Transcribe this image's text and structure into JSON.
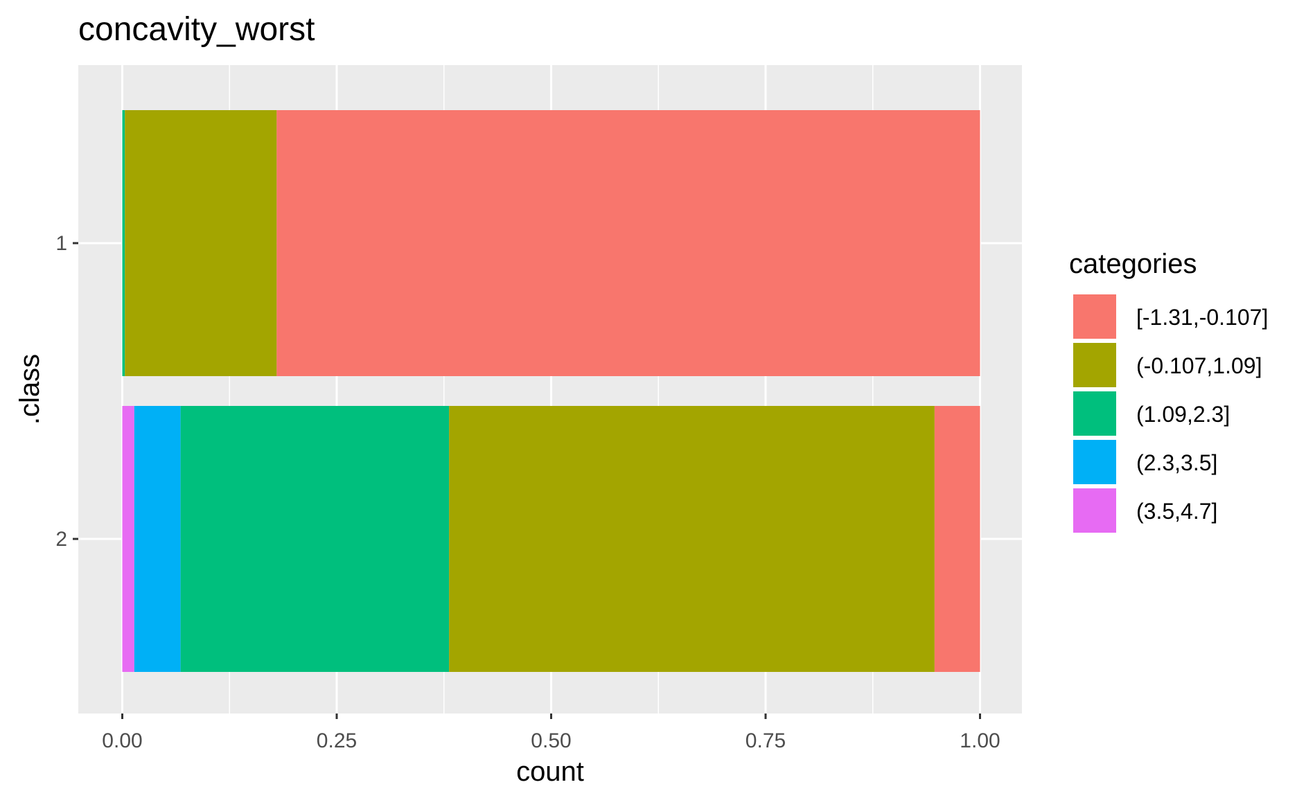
{
  "chart_data": {
    "type": "bar",
    "orientation": "horizontal",
    "stacked": true,
    "title": "concavity_worst",
    "xlabel": "count",
    "ylabel": ".class",
    "xlim": [
      0,
      1
    ],
    "x_ticks": [
      "0.00",
      "0.25",
      "0.50",
      "0.75",
      "1.00"
    ],
    "categories": [
      "1",
      "2"
    ],
    "legend_title": "categories",
    "legend_position": "right",
    "grid": true,
    "series": [
      {
        "name": "(3.5,4.7]",
        "color": "#E76BF3",
        "values": [
          0.0,
          0.014
        ]
      },
      {
        "name": "(2.3,3.5]",
        "color": "#00B0F6",
        "values": [
          0.0,
          0.054
        ]
      },
      {
        "name": "(1.09,2.3]",
        "color": "#00BF7D",
        "values": [
          0.003,
          0.313
        ]
      },
      {
        "name": "(-0.107,1.09]",
        "color": "#A3A500",
        "values": [
          0.177,
          0.566
        ]
      },
      {
        "name": "[-1.31,-0.107]",
        "color": "#F8766D",
        "values": [
          0.82,
          0.053
        ]
      }
    ],
    "legend_order": [
      "[-1.31,-0.107]",
      "(-0.107,1.09]",
      "(1.09,2.3]",
      "(2.3,3.5]",
      "(3.5,4.7]"
    ]
  }
}
